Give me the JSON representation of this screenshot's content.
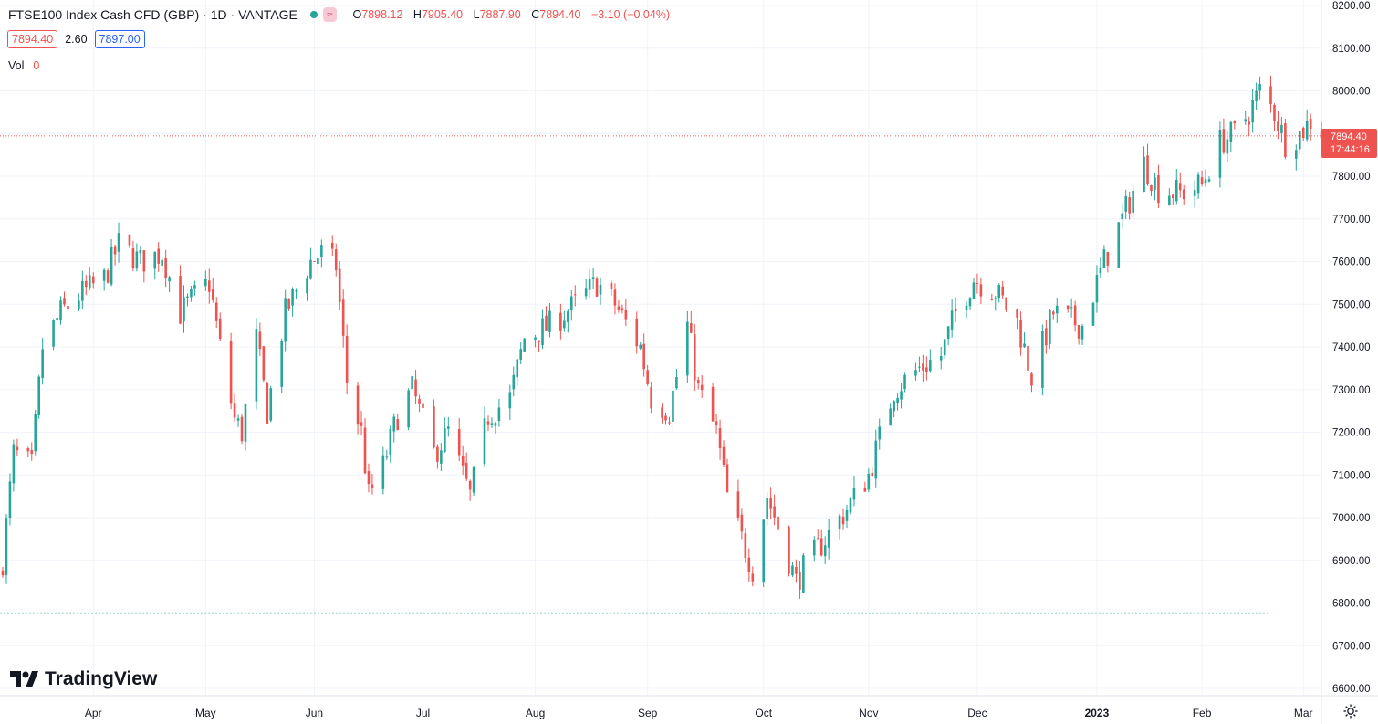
{
  "legend": {
    "title": "FTSE100 Index Cash CFD (GBP) · 1D · VANTAGE",
    "badge_symbol": "≈",
    "ohlc": [
      {
        "label": "O",
        "value": "7898.12"
      },
      {
        "label": "H",
        "value": "7905.40"
      },
      {
        "label": "L",
        "value": "7887.90"
      },
      {
        "label": "C",
        "value": "7894.40"
      }
    ],
    "change": "−3.10 (−0.04%)",
    "bid": "7894.40",
    "spread": "2.60",
    "ask": "7897.00",
    "vol_label": "Vol",
    "vol_value": "0"
  },
  "last_price_label": "7894.40",
  "countdown": "17:44:16",
  "logo_text": "TradingView",
  "colors": {
    "up": "#26a69a",
    "down": "#ef5350",
    "grid": "#f0f3fa",
    "axis_text": "#131722",
    "price_line": "#ef5350"
  },
  "icons": {
    "logo": "tradingview-logo-icon",
    "settings": "gear-icon"
  },
  "chart_data": {
    "type": "candlestick",
    "title": "FTSE100 Index Cash CFD (GBP) · 1D · VANTAGE",
    "ylim": [
      6600,
      8200
    ],
    "y_ticks": [
      "6600.00",
      "6700.00",
      "6800.00",
      "6900.00",
      "7000.00",
      "7100.00",
      "7200.00",
      "7300.00",
      "7400.00",
      "7500.00",
      "7600.00",
      "7700.00",
      "7800.00",
      "7900.00",
      "8000.00",
      "8100.00",
      "8200.00"
    ],
    "x_ticks": [
      {
        "label": "Apr",
        "date": "2022-04-01"
      },
      {
        "label": "May",
        "date": "2022-05-02"
      },
      {
        "label": "Jun",
        "date": "2022-06-01"
      },
      {
        "label": "Jul",
        "date": "2022-07-01"
      },
      {
        "label": "Aug",
        "date": "2022-08-01"
      },
      {
        "label": "Sep",
        "date": "2022-09-01"
      },
      {
        "label": "Oct",
        "date": "2022-10-03"
      },
      {
        "label": "Nov",
        "date": "2022-11-01"
      },
      {
        "label": "Dec",
        "date": "2022-12-01"
      },
      {
        "label": "2023",
        "date": "2023-01-03"
      },
      {
        "label": "Feb",
        "date": "2023-02-01"
      },
      {
        "label": "Mar",
        "date": "2023-03-01"
      }
    ],
    "close_path": [
      [
        "2022-03-07",
        6900
      ],
      [
        "2022-03-10",
        7150
      ],
      [
        "2022-03-15",
        7120
      ],
      [
        "2022-03-18",
        7400
      ],
      [
        "2022-03-23",
        7480
      ],
      [
        "2022-03-28",
        7520
      ],
      [
        "2022-04-04",
        7560
      ],
      [
        "2022-04-08",
        7640
      ],
      [
        "2022-04-14",
        7600
      ],
      [
        "2022-04-20",
        7620
      ],
      [
        "2022-04-25",
        7480
      ],
      [
        "2022-04-28",
        7510
      ],
      [
        "2022-05-03",
        7550
      ],
      [
        "2022-05-06",
        7400
      ],
      [
        "2022-05-10",
        7230
      ],
      [
        "2022-05-12",
        7200
      ],
      [
        "2022-05-16",
        7420
      ],
      [
        "2022-05-19",
        7250
      ],
      [
        "2022-05-24",
        7480
      ],
      [
        "2022-05-31",
        7600
      ],
      [
        "2022-06-03",
        7620
      ],
      [
        "2022-06-07",
        7590
      ],
      [
        "2022-06-10",
        7320
      ],
      [
        "2022-06-14",
        7200
      ],
      [
        "2022-06-16",
        7050
      ],
      [
        "2022-06-20",
        7120
      ],
      [
        "2022-06-24",
        7240
      ],
      [
        "2022-06-28",
        7300
      ],
      [
        "2022-07-04",
        7150
      ],
      [
        "2022-07-08",
        7200
      ],
      [
        "2022-07-14",
        7050
      ],
      [
        "2022-07-19",
        7240
      ],
      [
        "2022-07-25",
        7280
      ],
      [
        "2022-07-29",
        7420
      ],
      [
        "2022-08-05",
        7450
      ],
      [
        "2022-08-12",
        7500
      ],
      [
        "2022-08-18",
        7550
      ],
      [
        "2022-08-23",
        7500
      ],
      [
        "2022-08-30",
        7400
      ],
      [
        "2022-09-02",
        7280
      ],
      [
        "2022-09-07",
        7250
      ],
      [
        "2022-09-12",
        7450
      ],
      [
        "2022-09-15",
        7300
      ],
      [
        "2022-09-20",
        7200
      ],
      [
        "2022-09-23",
        7050
      ],
      [
        "2022-09-27",
        6950
      ],
      [
        "2022-09-30",
        6880
      ],
      [
        "2022-10-04",
        7050
      ],
      [
        "2022-10-07",
        6980
      ],
      [
        "2022-10-12",
        6850
      ],
      [
        "2022-10-14",
        6880
      ],
      [
        "2022-10-20",
        6950
      ],
      [
        "2022-10-26",
        7020
      ],
      [
        "2022-11-01",
        7100
      ],
      [
        "2022-11-08",
        7300
      ],
      [
        "2022-11-15",
        7350
      ],
      [
        "2022-11-21",
        7380
      ],
      [
        "2022-11-25",
        7480
      ],
      [
        "2022-11-30",
        7560
      ],
      [
        "2022-12-06",
        7530
      ],
      [
        "2022-12-12",
        7460
      ],
      [
        "2022-12-16",
        7330
      ],
      [
        "2022-12-22",
        7480
      ],
      [
        "2022-12-30",
        7450
      ],
      [
        "2023-01-05",
        7600
      ],
      [
        "2023-01-10",
        7700
      ],
      [
        "2023-01-16",
        7830
      ],
      [
        "2023-01-20",
        7770
      ],
      [
        "2023-01-26",
        7760
      ],
      [
        "2023-02-01",
        7780
      ],
      [
        "2023-02-06",
        7880
      ],
      [
        "2023-02-10",
        7900
      ],
      [
        "2023-02-14",
        7950
      ],
      [
        "2023-02-17",
        8000
      ],
      [
        "2023-02-21",
        7950
      ],
      [
        "2023-02-24",
        7880
      ],
      [
        "2023-02-28",
        7900
      ],
      [
        "2023-03-03",
        7930
      ],
      [
        "2023-03-07",
        7894.4
      ]
    ],
    "last_close": 7894.4,
    "reference_line": 6777,
    "grid": true,
    "candle_up_color": "#26a69a",
    "candle_down_color": "#ef5350"
  }
}
